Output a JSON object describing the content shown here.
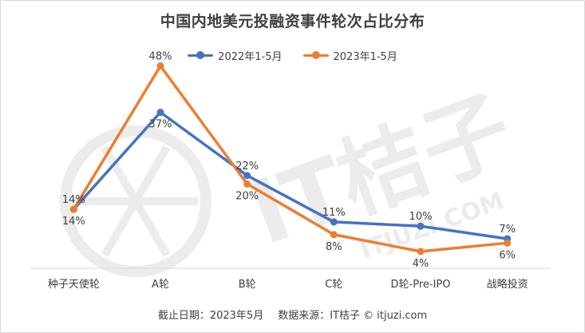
{
  "title": "中国内地美元投融资事件轮次占比分布",
  "footer": {
    "date_text": "截止日期：2023年5月",
    "source_text": "数据来源：IT桔子 © itjuzi.com"
  },
  "watermark": {
    "text": "IT桔子",
    "subtext": "ITJUZI.COM",
    "color": "#ececec"
  },
  "chart_data": {
    "type": "line",
    "categories": [
      "种子天使轮",
      "A轮",
      "B轮",
      "C轮",
      "D轮-Pre-IPO",
      "战略投资"
    ],
    "series": [
      {
        "name": "2022年1-5月",
        "color": "#4472c4",
        "values": [
          14,
          37,
          22,
          11,
          10,
          7
        ],
        "labels": [
          "14%",
          "37%",
          "22%",
          "11%",
          "10%",
          "7%"
        ]
      },
      {
        "name": "2023年1-5月",
        "color": "#ed7d31",
        "values": [
          14,
          48,
          20,
          8,
          4,
          6
        ],
        "labels": [
          "14%",
          "48%",
          "20%",
          "8%",
          "4%",
          "6%"
        ]
      }
    ],
    "ylim": [
      0,
      50
    ],
    "grid": false,
    "legend_position": "top",
    "xlabel": "",
    "ylabel": ""
  }
}
